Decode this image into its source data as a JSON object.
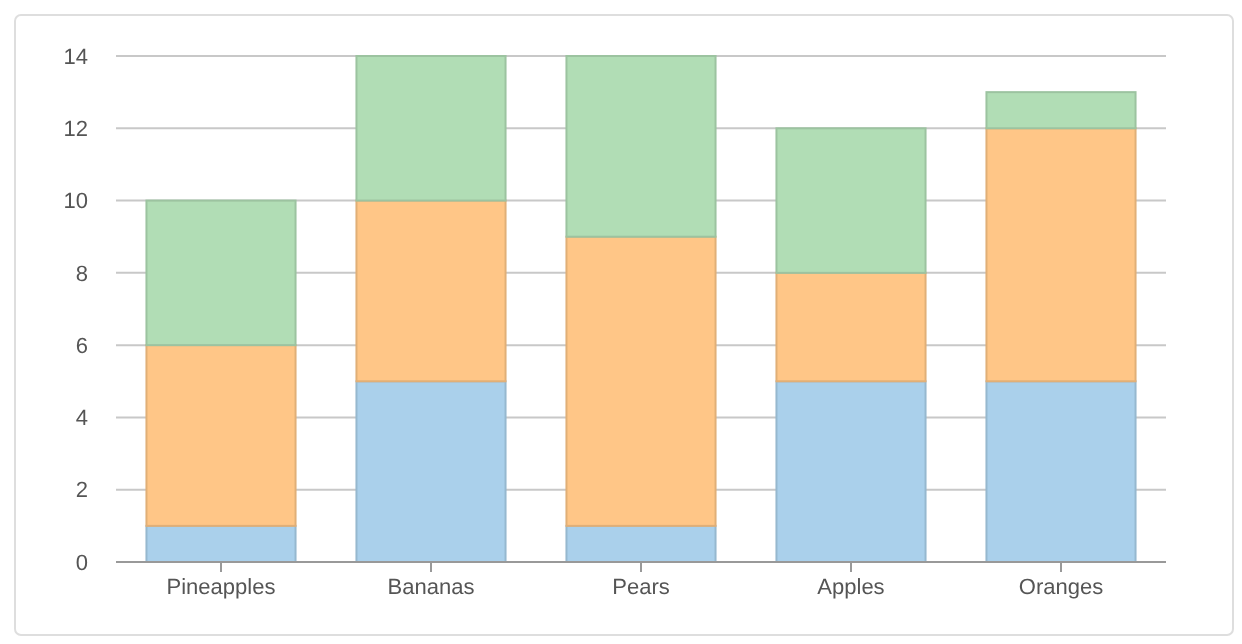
{
  "chart_data": {
    "type": "bar",
    "stacked": true,
    "categories": [
      "Pineapples",
      "Bananas",
      "Pears",
      "Apples",
      "Oranges"
    ],
    "series": [
      {
        "color": "#aad0eb",
        "values": [
          1,
          5,
          1,
          5,
          5
        ]
      },
      {
        "color": "#ffc687",
        "values": [
          5,
          5,
          8,
          3,
          7
        ]
      },
      {
        "color": "#b1ddb5",
        "values": [
          4,
          4,
          5,
          4,
          1
        ]
      }
    ],
    "ylim": [
      0,
      14
    ],
    "yticks": [
      0,
      2,
      4,
      6,
      8,
      10,
      12,
      14
    ],
    "grid": "y"
  }
}
